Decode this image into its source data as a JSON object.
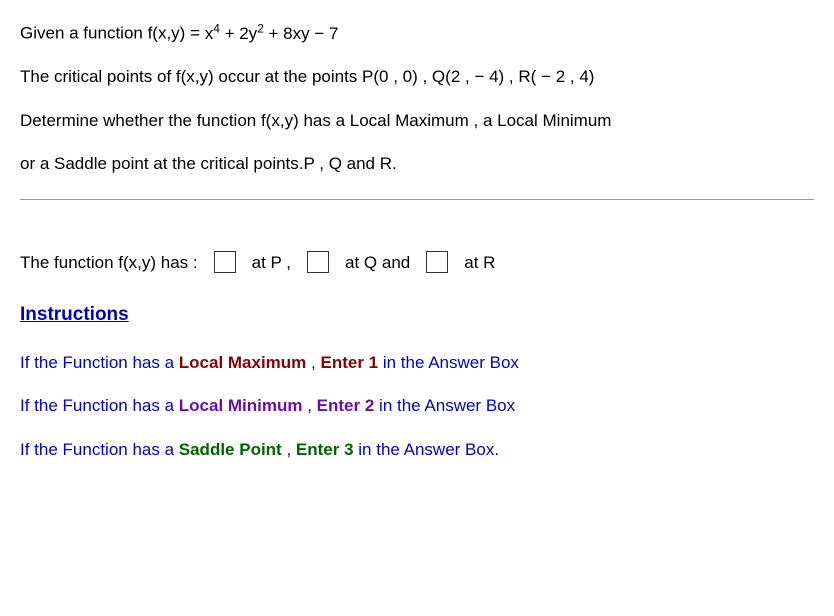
{
  "question": {
    "line1_pre": "Given a function f(x,y) = ",
    "expr_html": "x<sup>4</sup> + 2y<sup>2</sup> + 8xy − 7",
    "line2": "The critical points of f(x,y) occur at the points P(0 , 0) , Q(2 , −  4) , R( − 2 , 4)",
    "line3": "Determine whether the function  f(x,y) has a Local Maximum , a Local Minimum",
    "line4": "or a Saddle point at the critical points.P ,  Q  and  R."
  },
  "answer_row": {
    "lead": "The function f(x,y) has :",
    "at_p": "at P ,",
    "at_q": "at  Q  and",
    "at_r": "at  R"
  },
  "instructions": {
    "heading": "Instructions",
    "rows": [
      {
        "prefix": "If the Function has a ",
        "label": "Local Maximum",
        "label_class": "lbl-max",
        "mid": " , ",
        "enter": "Enter 1",
        "enter_class": "ent-1",
        "suffix": " in the Answer Box"
      },
      {
        "prefix": "If the Function has a ",
        "label": "Local Minimum",
        "label_class": "lbl-min",
        "mid": " , ",
        "enter": "Enter 2",
        "enter_class": "ent-2",
        "suffix": " in the Answer Box"
      },
      {
        "prefix": "If the Function has a ",
        "label": "Saddle Point ",
        "label_class": "lbl-saddle",
        "mid": " , ",
        "enter": "Enter 3",
        "enter_class": "ent-3",
        "suffix": " in the Answer Box."
      }
    ]
  },
  "colors": {
    "instruction_text": "#0000cd",
    "max": "#8b0000",
    "min": "#6a0dad",
    "saddle": "#006400",
    "separator": "#999999",
    "box_border": "#333333"
  }
}
